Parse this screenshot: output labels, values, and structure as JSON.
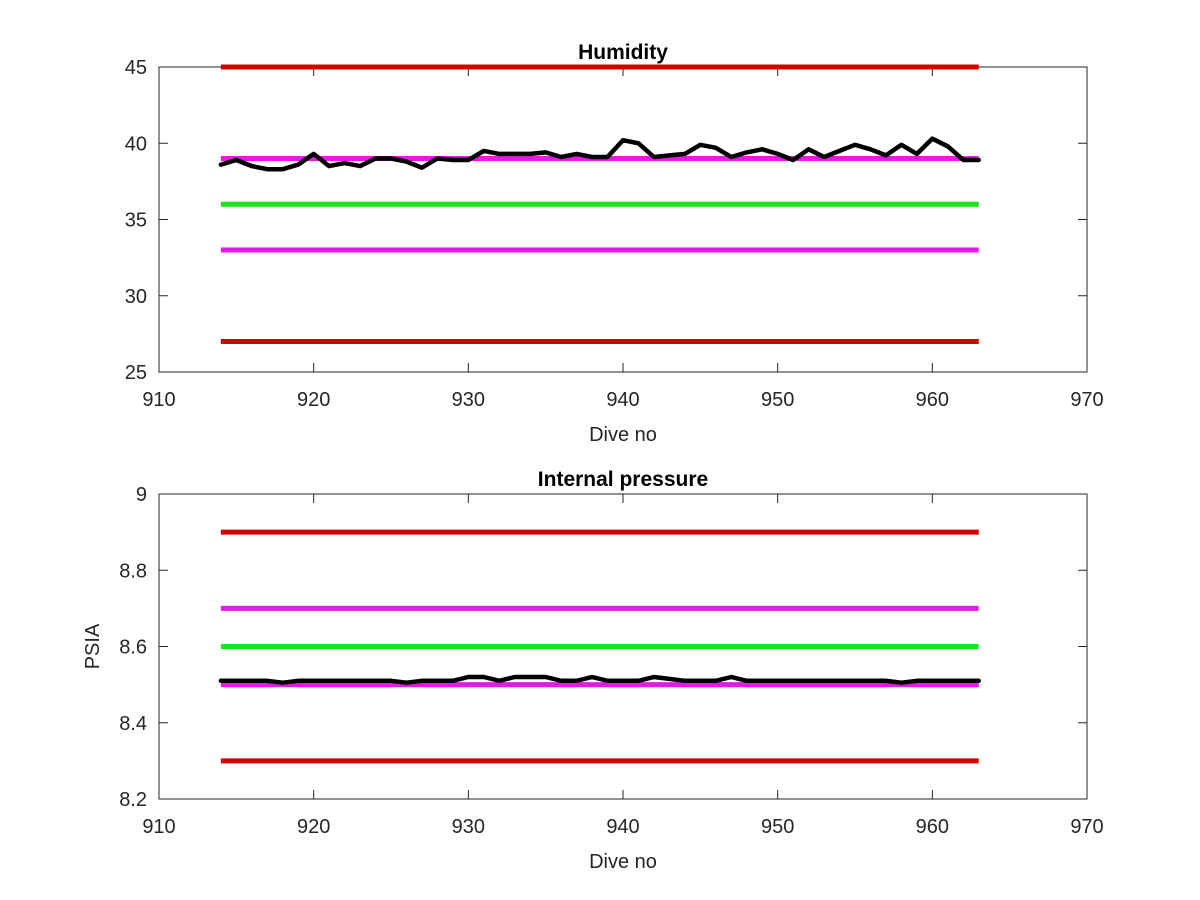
{
  "chart_data": [
    {
      "type": "line",
      "title": "Humidity",
      "xlabel": "Dive no",
      "ylabel": "",
      "xlim": [
        910,
        970
      ],
      "ylim": [
        25,
        45
      ],
      "xticks": [
        910,
        920,
        930,
        940,
        950,
        960,
        970
      ],
      "yticks": [
        25,
        30,
        35,
        40,
        45
      ],
      "grid": false,
      "series": [
        {
          "kind": "hline",
          "y": 45,
          "x": [
            914,
            963
          ],
          "color": "#d40000"
        },
        {
          "kind": "hline",
          "y": 39,
          "x": [
            914,
            963
          ],
          "color": "#e619e6"
        },
        {
          "kind": "hline",
          "y": 36,
          "x": [
            914,
            963
          ],
          "color": "#19e619"
        },
        {
          "kind": "hline",
          "y": 33,
          "x": [
            914,
            963
          ],
          "color": "#e619e6"
        },
        {
          "kind": "hline",
          "y": 27,
          "x": [
            914,
            963
          ],
          "color": "#d40000"
        },
        {
          "kind": "line",
          "color": "#000000",
          "x": [
            914,
            915,
            916,
            917,
            918,
            919,
            920,
            921,
            922,
            923,
            924,
            925,
            926,
            927,
            928,
            929,
            930,
            931,
            932,
            933,
            934,
            935,
            936,
            937,
            938,
            939,
            940,
            941,
            942,
            943,
            944,
            945,
            946,
            947,
            948,
            949,
            950,
            951,
            952,
            953,
            954,
            955,
            956,
            957,
            958,
            959,
            960,
            961,
            962,
            963
          ],
          "y": [
            38.6,
            38.9,
            38.5,
            38.3,
            38.3,
            38.6,
            39.3,
            38.5,
            38.7,
            38.5,
            39.0,
            39.0,
            38.8,
            38.4,
            39.0,
            38.9,
            38.9,
            39.5,
            39.3,
            39.3,
            39.3,
            39.4,
            39.1,
            39.3,
            39.1,
            39.1,
            40.2,
            40.0,
            39.1,
            39.2,
            39.3,
            39.9,
            39.7,
            39.1,
            39.4,
            39.6,
            39.3,
            38.9,
            39.6,
            39.1,
            39.5,
            39.9,
            39.6,
            39.2,
            39.9,
            39.3,
            40.3,
            39.8,
            38.9,
            38.9
          ]
        }
      ]
    },
    {
      "type": "line",
      "title": "Internal pressure",
      "xlabel": "Dive no",
      "ylabel": "PSIA",
      "xlim": [
        910,
        970
      ],
      "ylim": [
        8.2,
        9.0
      ],
      "xticks": [
        910,
        920,
        930,
        940,
        950,
        960,
        970
      ],
      "yticks": [
        8.2,
        8.4,
        8.6,
        8.8,
        9.0
      ],
      "ytick_labels": [
        "8.2",
        "8.4",
        "8.6",
        "8.8",
        "9"
      ],
      "grid": false,
      "series": [
        {
          "kind": "hline",
          "y": 8.9,
          "x": [
            914,
            963
          ],
          "color": "#d40000"
        },
        {
          "kind": "hline",
          "y": 8.7,
          "x": [
            914,
            963
          ],
          "color": "#e619e6"
        },
        {
          "kind": "hline",
          "y": 8.6,
          "x": [
            914,
            963
          ],
          "color": "#19e619"
        },
        {
          "kind": "hline",
          "y": 8.5,
          "x": [
            914,
            963
          ],
          "color": "#e619e6"
        },
        {
          "kind": "hline",
          "y": 8.3,
          "x": [
            914,
            963
          ],
          "color": "#d40000"
        },
        {
          "kind": "line",
          "color": "#000000",
          "x": [
            914,
            915,
            916,
            917,
            918,
            919,
            920,
            921,
            922,
            923,
            924,
            925,
            926,
            927,
            928,
            929,
            930,
            931,
            932,
            933,
            934,
            935,
            936,
            937,
            938,
            939,
            940,
            941,
            942,
            943,
            944,
            945,
            946,
            947,
            948,
            949,
            950,
            951,
            952,
            953,
            954,
            955,
            956,
            957,
            958,
            959,
            960,
            961,
            962,
            963
          ],
          "y": [
            8.51,
            8.51,
            8.51,
            8.51,
            8.505,
            8.51,
            8.51,
            8.51,
            8.51,
            8.51,
            8.51,
            8.51,
            8.505,
            8.51,
            8.51,
            8.51,
            8.52,
            8.52,
            8.51,
            8.52,
            8.52,
            8.52,
            8.51,
            8.51,
            8.52,
            8.51,
            8.51,
            8.51,
            8.52,
            8.515,
            8.51,
            8.51,
            8.51,
            8.52,
            8.51,
            8.51,
            8.51,
            8.51,
            8.51,
            8.51,
            8.51,
            8.51,
            8.51,
            8.51,
            8.505,
            8.51,
            8.51,
            8.51,
            8.51,
            8.51
          ]
        }
      ]
    }
  ]
}
